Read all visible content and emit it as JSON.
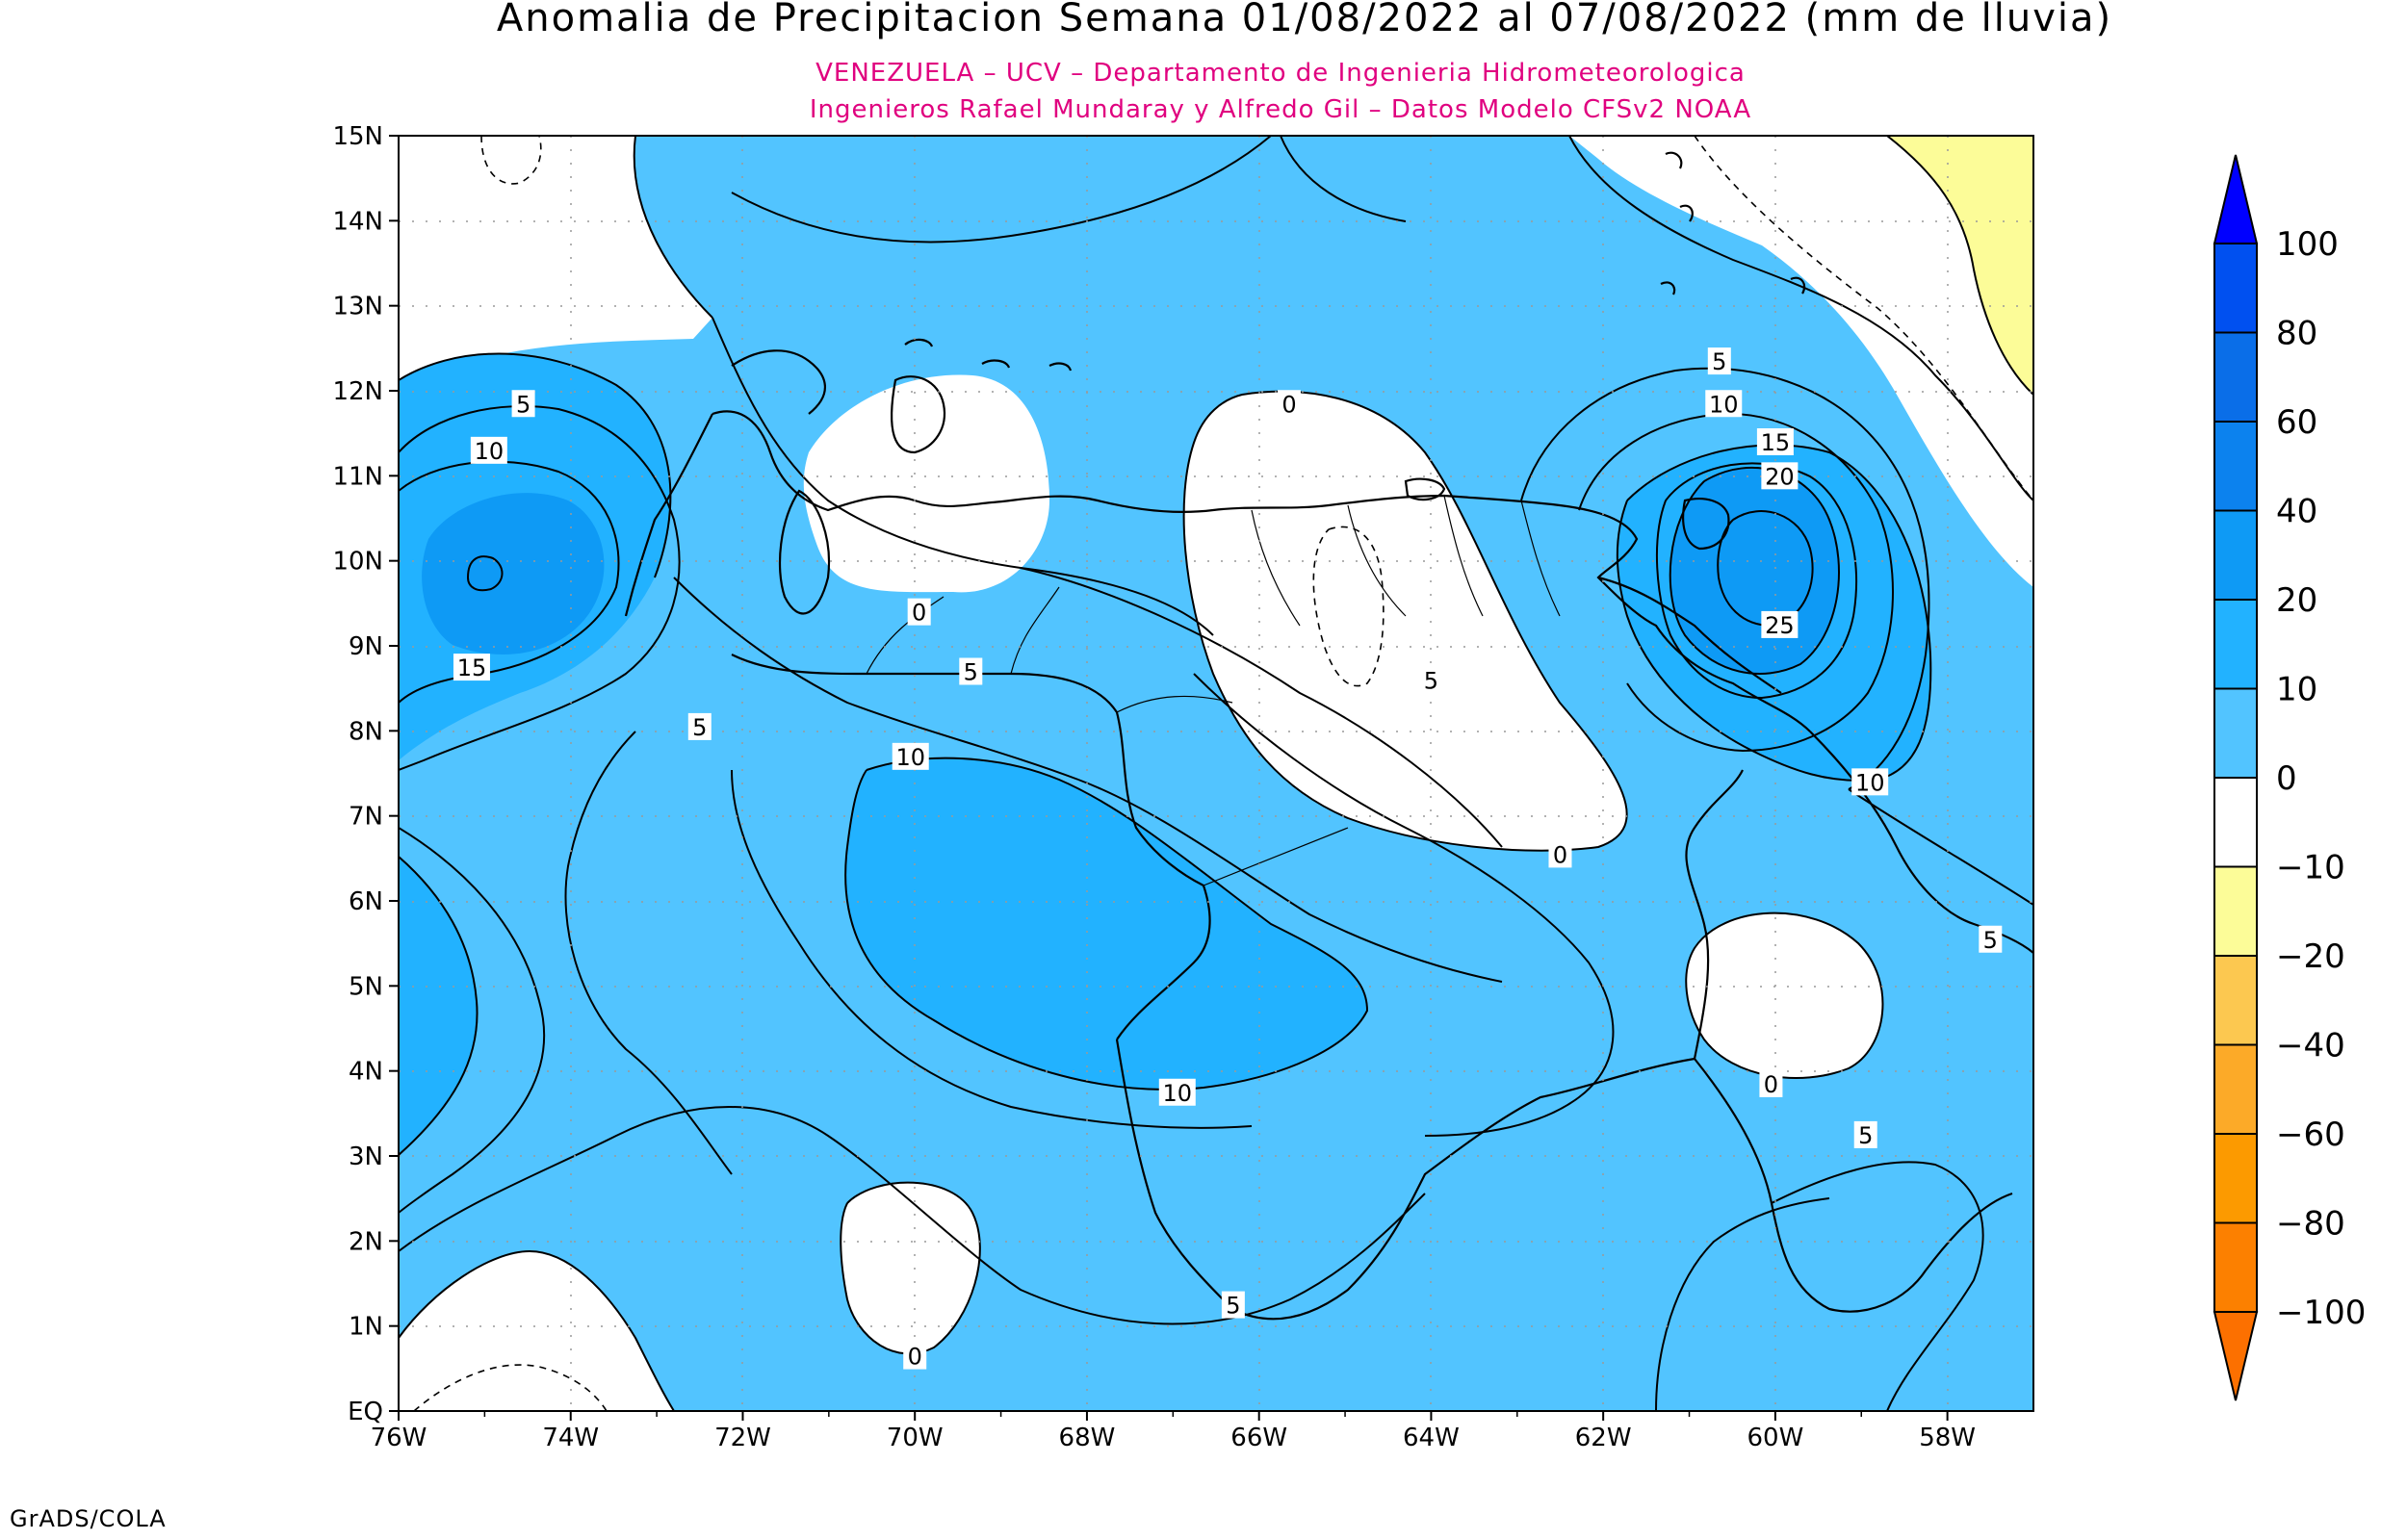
{
  "title": "Anomalia de Precipitacion Semana 01/08/2022 al 07/08/2022 (mm de lluvia)",
  "subtitle_line1": "VENEZUELA – UCV – Departamento de Ingenieria Hidrometeorologica",
  "subtitle_line2": "Ingenieros Rafael Mundaray y Alfredo Gil – Datos Modelo CFSv2 NOAA",
  "footer": "GrADS/COLA",
  "colors": {
    "fill_0_10": "#52c4ff",
    "fill_10_20": "#22b2ff",
    "fill_20_40": "#0e9af5",
    "fill_neg_10_20": "#fcfc98",
    "coastline": "#000000"
  },
  "map": {
    "lon_range": [
      -76,
      -57
    ],
    "lat_range": [
      0,
      15
    ],
    "lon_ticks": [
      "76W",
      "74W",
      "72W",
      "70W",
      "68W",
      "66W",
      "64W",
      "62W",
      "60W",
      "58W"
    ],
    "lat_ticks": [
      "EQ",
      "1N",
      "2N",
      "3N",
      "4N",
      "5N",
      "6N",
      "7N",
      "8N",
      "9N",
      "10N",
      "11N",
      "12N",
      "13N",
      "14N",
      "15N"
    ],
    "contour_labels": [
      {
        "text": "0",
        "lon": -65.65,
        "lat": 11.85
      },
      {
        "text": "0",
        "lon": -62.5,
        "lat": 6.55
      },
      {
        "text": "0",
        "lon": -60.05,
        "lat": 3.85
      },
      {
        "text": "0",
        "lon": -70.0,
        "lat": 0.65
      },
      {
        "text": "0",
        "lon": -69.95,
        "lat": 9.4
      },
      {
        "text": "5",
        "lon": -74.55,
        "lat": 11.85
      },
      {
        "text": "5",
        "lon": -72.5,
        "lat": 8.05
      },
      {
        "text": "5",
        "lon": -69.35,
        "lat": 8.7
      },
      {
        "text": "5",
        "lon": -64.0,
        "lat": 8.6
      },
      {
        "text": "5",
        "lon": -60.65,
        "lat": 12.35
      },
      {
        "text": "5",
        "lon": -57.5,
        "lat": 5.55
      },
      {
        "text": "5",
        "lon": -58.95,
        "lat": 3.25
      },
      {
        "text": "5",
        "lon": -66.3,
        "lat": 1.25
      },
      {
        "text": "10",
        "lon": -74.95,
        "lat": 11.3
      },
      {
        "text": "10",
        "lon": -70.05,
        "lat": 7.7
      },
      {
        "text": "10",
        "lon": -66.95,
        "lat": 3.75
      },
      {
        "text": "10",
        "lon": -60.6,
        "lat": 11.85
      },
      {
        "text": "10",
        "lon": -58.9,
        "lat": 7.4
      },
      {
        "text": "15",
        "lon": -75.15,
        "lat": 8.75
      },
      {
        "text": "15",
        "lon": -60.0,
        "lat": 11.4
      },
      {
        "text": "20",
        "lon": -59.95,
        "lat": 11.0
      },
      {
        "text": "25",
        "lon": -59.95,
        "lat": 9.25
      }
    ]
  },
  "colorbar": {
    "labels": [
      "100",
      "80",
      "60",
      "40",
      "20",
      "10",
      "0",
      "−10",
      "−20",
      "−40",
      "−60",
      "−80",
      "−100"
    ],
    "colors": [
      "#0000ff",
      "#0050f0",
      "#0a6ee8",
      "#0c82ee",
      "#0e9af5",
      "#22b2ff",
      "#52c4ff",
      "#ffffff",
      "#fcfc98",
      "#fcc850",
      "#fcaa28",
      "#fc9a00",
      "#fc8000",
      "#fc7000"
    ]
  }
}
